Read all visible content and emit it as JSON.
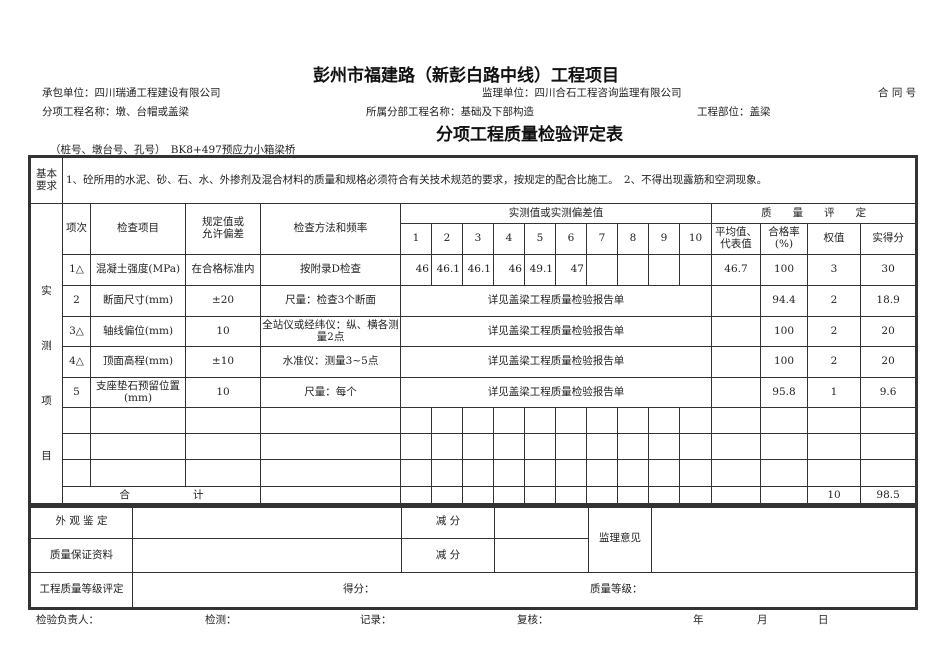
{
  "header": {
    "title": "彭州市福建路（新彭白路中线）工程项目",
    "contractor": "承包单位：四川瑞通工程建设有限公司",
    "supervisor": "监理单位：四川合石工程咨询监理有限公司",
    "contract": "合 同 号",
    "subproject": "分项工程名称：墩、台帽或盖梁",
    "division": "所属分部工程名称：基础及下部构造",
    "location": "工程部位：盖梁",
    "form_title": "分项工程质量检验评定表",
    "station": "（桩号、墩台号、孔号）　BK8+497预应力小箱梁桥"
  },
  "basic": {
    "label": "基本要求",
    "text": "1、砼所用的水泥、砂、石、水、外掺剂及混合材料的质量和规格必须符合有关技术规范的要求，按规定的配合比施工。　2、不得出现露筋和空洞现象。"
  },
  "table": {
    "side_label": [
      "实",
      "测",
      "项",
      "目"
    ],
    "col_no": "项次",
    "col_item": "检查项目",
    "col_spec": "规定值或允许偏差",
    "col_method": "检查方法和频率",
    "col_measured": "实测值或实测偏差值",
    "col_quality": "质　　量　　评　　定",
    "measure_nums": [
      "1",
      "2",
      "3",
      "4",
      "5",
      "6",
      "7",
      "8",
      "9",
      "10"
    ],
    "col_avg": "平均值、代表值",
    "col_rate": "合格率(%)",
    "col_weight": "权值",
    "col_score": "实得分",
    "rows": [
      {
        "no": "1△",
        "item": "混凝土强度(MPa)",
        "spec": "在合格标准内",
        "method": "按附录D检查",
        "values": [
          "46",
          "46.1",
          "46.1",
          "46",
          "49.1",
          "47",
          "",
          "",
          "",
          ""
        ],
        "avg": "46.7",
        "rate": "100",
        "weight": "3",
        "score": "30"
      },
      {
        "no": "2",
        "item": "断面尺寸(mm)",
        "spec": "±20",
        "method": "尺量：检查3个断面",
        "note": "详见盖梁工程质量检验报告单",
        "avg": "",
        "rate": "94.4",
        "weight": "2",
        "score": "18.9"
      },
      {
        "no": "3△",
        "item": "轴线偏位(mm)",
        "spec": "10",
        "method": "全站仪或经纬仪：纵、横各测量2点",
        "note": "详见盖梁工程质量检验报告单",
        "avg": "",
        "rate": "100",
        "weight": "2",
        "score": "20"
      },
      {
        "no": "4△",
        "item": "顶面高程(mm)",
        "spec": "±10",
        "method": "水准仪：测量3~5点",
        "note": "详见盖梁工程质量检验报告单",
        "avg": "",
        "rate": "100",
        "weight": "2",
        "score": "20"
      },
      {
        "no": "5",
        "item": "支座垫石预留位置(mm)",
        "spec": "10",
        "method": "尺量：每个",
        "note": "详见盖梁工程质量检验报告单",
        "avg": "",
        "rate": "95.8",
        "weight": "1",
        "score": "9.6"
      }
    ],
    "total_label": "合　　　　　　计",
    "total_weight": "10",
    "total_score": "98.5"
  },
  "bottom": {
    "appearance": "外 观 鉴 定",
    "deduct1": "减 分",
    "qa_docs": "质量保证资料",
    "deduct2": "减 分",
    "supervision": "监理意见",
    "grade_eval": "工程质量等级评定",
    "score_label": "得分：",
    "grade_label": "质量等级："
  },
  "footer": {
    "inspector": "检验负责人：",
    "tester": "检测：",
    "recorder": "记录：",
    "reviewer": "复核：",
    "year": "年",
    "month": "月",
    "day": "日"
  }
}
